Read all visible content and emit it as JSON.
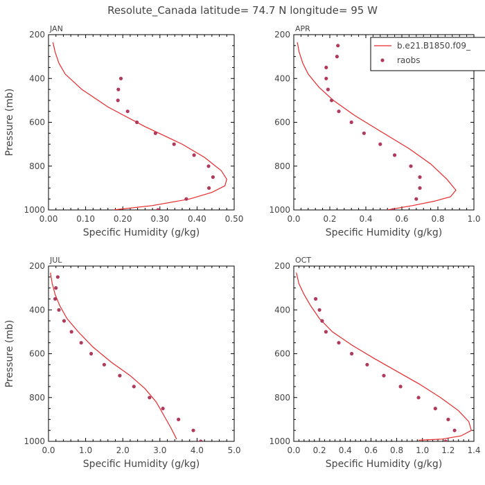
{
  "title": "Resolute_Canada  latitude= 74.7 N longitude= 95 W",
  "colors": {
    "model": "#e8282a",
    "raobs": "#b03a5b",
    "axis": "#000000",
    "text": "#444444"
  },
  "legend": {
    "placement": "top-right of APR panel (clipped at right edge)",
    "items": [
      {
        "label": "b.e21.B1850.f09_",
        "style": "line"
      },
      {
        "label": "raobs",
        "style": "marker"
      }
    ]
  },
  "chart_data": [
    {
      "type": "line",
      "panel_title": "JAN",
      "xlabel": "Specific Humidity (g/kg)",
      "ylabel": "Pressure (mb)",
      "xlim": [
        0,
        0.5
      ],
      "ylim": [
        1000,
        200
      ],
      "x_ticks": [
        "0.00",
        "0.10",
        "0.20",
        "0.30",
        "0.40",
        "0.50"
      ],
      "x_tick_values": [
        0,
        0.1,
        0.2,
        0.3,
        0.4,
        0.5
      ],
      "y_ticks": [
        "200",
        "400",
        "600",
        "800",
        "1000"
      ],
      "y_tick_values": [
        200,
        400,
        600,
        800,
        1000
      ],
      "series": [
        {
          "name": "b.e21.B1850.f09_",
          "kind": "line",
          "points": [
            [
              0.012,
              235
            ],
            [
              0.018,
              280
            ],
            [
              0.028,
              330
            ],
            [
              0.045,
              380
            ],
            [
              0.09,
              450
            ],
            [
              0.16,
              530
            ],
            [
              0.26,
              620
            ],
            [
              0.36,
              700
            ],
            [
              0.42,
              760
            ],
            [
              0.465,
              820
            ],
            [
              0.48,
              860
            ],
            [
              0.475,
              890
            ],
            [
              0.44,
              920
            ],
            [
              0.38,
              950
            ],
            [
              0.28,
              980
            ],
            [
              0.175,
              1000
            ]
          ]
        },
        {
          "name": "raobs",
          "kind": "scatter",
          "points": [
            [
              0.195,
              400
            ],
            [
              0.188,
              450
            ],
            [
              0.187,
              500
            ],
            [
              0.213,
              550
            ],
            [
              0.238,
              600
            ],
            [
              0.288,
              650
            ],
            [
              0.338,
              700
            ],
            [
              0.392,
              750
            ],
            [
              0.431,
              800
            ],
            [
              0.443,
              850
            ],
            [
              0.432,
              900
            ],
            [
              0.371,
              950
            ],
            [
              0.295,
              1000
            ]
          ]
        }
      ]
    },
    {
      "type": "line",
      "panel_title": "APR",
      "xlabel": "Specific Humidity (g/kg)",
      "ylabel": "",
      "xlim": [
        0,
        1.0
      ],
      "ylim": [
        1000,
        200
      ],
      "x_ticks": [
        "0.0",
        "0.2",
        "0.4",
        "0.6",
        "0.8",
        "1.0"
      ],
      "x_tick_values": [
        0,
        0.2,
        0.4,
        0.6,
        0.8,
        1.0
      ],
      "y_ticks": [
        "200",
        "400",
        "600",
        "800",
        "1000"
      ],
      "y_tick_values": [
        200,
        400,
        600,
        800,
        1000
      ],
      "series": [
        {
          "name": "b.e21.B1850.f09_",
          "kind": "line",
          "points": [
            [
              0.02,
              235
            ],
            [
              0.03,
              280
            ],
            [
              0.05,
              330
            ],
            [
              0.08,
              380
            ],
            [
              0.14,
              440
            ],
            [
              0.22,
              500
            ],
            [
              0.34,
              570
            ],
            [
              0.48,
              640
            ],
            [
              0.64,
              720
            ],
            [
              0.76,
              790
            ],
            [
              0.85,
              860
            ],
            [
              0.9,
              910
            ],
            [
              0.87,
              940
            ],
            [
              0.78,
              960
            ],
            [
              0.66,
              980
            ],
            [
              0.52,
              1000
            ]
          ]
        },
        {
          "name": "raobs",
          "kind": "scatter",
          "points": [
            [
              0.245,
              250
            ],
            [
              0.24,
              300
            ],
            [
              0.18,
              350
            ],
            [
              0.18,
              400
            ],
            [
              0.19,
              450
            ],
            [
              0.21,
              500
            ],
            [
              0.25,
              550
            ],
            [
              0.32,
              600
            ],
            [
              0.39,
              650
            ],
            [
              0.48,
              700
            ],
            [
              0.56,
              750
            ],
            [
              0.65,
              800
            ],
            [
              0.7,
              850
            ],
            [
              0.7,
              900
            ],
            [
              0.68,
              950
            ],
            [
              0.55,
              1000
            ]
          ]
        }
      ]
    },
    {
      "type": "line",
      "panel_title": "JUL",
      "xlabel": "Specific Humidity (g/kg)",
      "ylabel": "Pressure (mb)",
      "xlim": [
        0,
        5.0
      ],
      "ylim": [
        1000,
        200
      ],
      "x_ticks": [
        "0.0",
        "1.0",
        "2.0",
        "3.0",
        "4.0",
        "5.0"
      ],
      "x_tick_values": [
        0,
        1,
        2,
        3,
        4,
        5
      ],
      "y_ticks": [
        "200",
        "400",
        "600",
        "800",
        "1000"
      ],
      "y_tick_values": [
        200,
        400,
        600,
        800,
        1000
      ],
      "series": [
        {
          "name": "b.e21.B1850.f09_",
          "kind": "line",
          "points": [
            [
              0.05,
              230
            ],
            [
              0.1,
              280
            ],
            [
              0.18,
              330
            ],
            [
              0.3,
              380
            ],
            [
              0.5,
              440
            ],
            [
              0.8,
              500
            ],
            [
              1.2,
              570
            ],
            [
              1.7,
              640
            ],
            [
              2.2,
              700
            ],
            [
              2.6,
              760
            ],
            [
              2.9,
              820
            ],
            [
              3.1,
              880
            ],
            [
              3.3,
              940
            ],
            [
              3.45,
              990
            ]
          ]
        },
        {
          "name": "raobs",
          "kind": "scatter",
          "points": [
            [
              0.25,
              250
            ],
            [
              0.2,
              300
            ],
            [
              0.18,
              350
            ],
            [
              0.28,
              400
            ],
            [
              0.42,
              450
            ],
            [
              0.62,
              500
            ],
            [
              0.88,
              550
            ],
            [
              1.15,
              600
            ],
            [
              1.5,
              650
            ],
            [
              1.92,
              700
            ],
            [
              2.3,
              750
            ],
            [
              2.72,
              800
            ],
            [
              3.08,
              850
            ],
            [
              3.5,
              900
            ],
            [
              3.9,
              950
            ],
            [
              4.1,
              1000
            ]
          ]
        }
      ]
    },
    {
      "type": "line",
      "panel_title": "OCT",
      "xlabel": "Specific Humidity (g/kg)",
      "ylabel": "",
      "xlim": [
        0,
        1.4
      ],
      "ylim": [
        1000,
        200
      ],
      "x_ticks": [
        "0.0",
        "0.2",
        "0.4",
        "0.6",
        "0.8",
        "1.0",
        "1.2",
        "1.4"
      ],
      "x_tick_values": [
        0,
        0.2,
        0.4,
        0.6,
        0.8,
        1.0,
        1.2,
        1.4
      ],
      "y_ticks": [
        "200",
        "400",
        "600",
        "800",
        "1000"
      ],
      "y_tick_values": [
        200,
        400,
        600,
        800,
        1000
      ],
      "series": [
        {
          "name": "b.e21.B1850.f09_",
          "kind": "line",
          "points": [
            [
              0.02,
              230
            ],
            [
              0.04,
              280
            ],
            [
              0.08,
              330
            ],
            [
              0.13,
              380
            ],
            [
              0.2,
              440
            ],
            [
              0.3,
              500
            ],
            [
              0.45,
              560
            ],
            [
              0.62,
              620
            ],
            [
              0.8,
              680
            ],
            [
              0.98,
              740
            ],
            [
              1.14,
              800
            ],
            [
              1.28,
              860
            ],
            [
              1.36,
              910
            ],
            [
              1.38,
              950
            ],
            [
              1.3,
              975
            ],
            [
              1.15,
              990
            ],
            [
              0.97,
              995
            ]
          ]
        },
        {
          "name": "raobs",
          "kind": "scatter",
          "points": [
            [
              0.17,
              350
            ],
            [
              0.2,
              400
            ],
            [
              0.22,
              450
            ],
            [
              0.25,
              500
            ],
            [
              0.35,
              550
            ],
            [
              0.45,
              600
            ],
            [
              0.57,
              650
            ],
            [
              0.7,
              700
            ],
            [
              0.83,
              750
            ],
            [
              0.97,
              800
            ],
            [
              1.1,
              850
            ],
            [
              1.2,
              900
            ],
            [
              1.25,
              950
            ],
            [
              1.18,
              1000
            ]
          ]
        }
      ]
    }
  ]
}
